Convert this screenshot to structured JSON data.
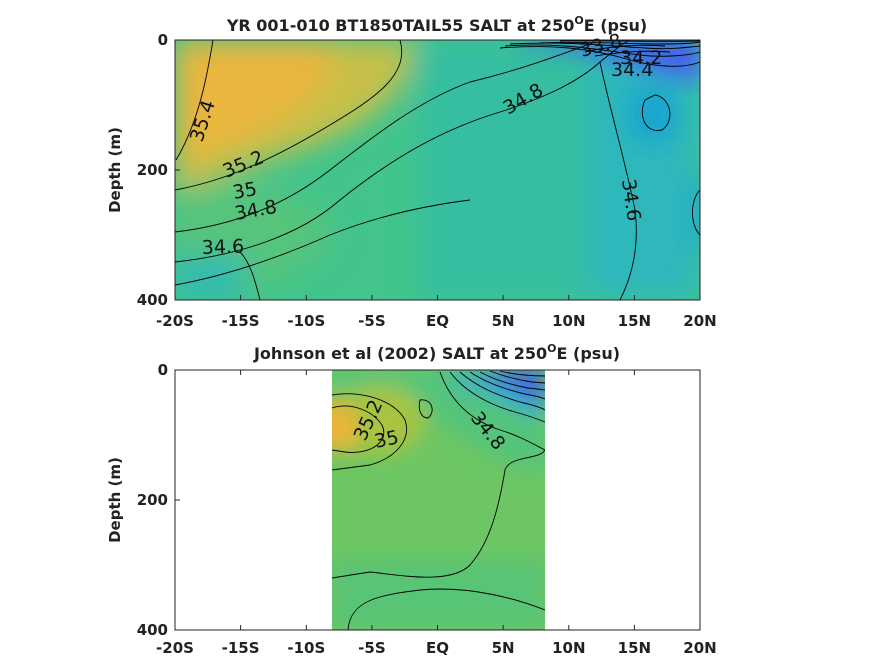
{
  "chart_data": [
    {
      "type": "heatmap",
      "title_main": "YR 001-010 BT1850TAIL55 SALT at 250",
      "title_sup": "O",
      "title_end": "E (psu)",
      "ylabel": "Depth (m)",
      "xlim": [
        -20,
        20
      ],
      "ylim": [
        0,
        400
      ],
      "y_reversed": true,
      "x_ticks": [
        "-20S",
        "-15S",
        "-10S",
        "-5S",
        "EQ",
        "5N",
        "10N",
        "15N",
        "20N"
      ],
      "y_ticks": [
        "0",
        "200",
        "400"
      ],
      "contour_labels": [
        "35.4",
        "35.2",
        "35",
        "34.8",
        "34.6",
        "34.8",
        "34.6",
        "34.4",
        "34.2",
        "33.8"
      ],
      "colors": {
        "high": "#f0b43a",
        "mid": "#3cc48a",
        "low": "#2fb8c4",
        "fresh": "#3d5ee8"
      }
    },
    {
      "type": "heatmap",
      "title_main": "Johnson et al (2002) SALT at 250",
      "title_sup": "O",
      "title_end": "E (psu)",
      "ylabel": "Depth (m)",
      "xlim": [
        -20,
        20
      ],
      "ylim": [
        0,
        400
      ],
      "y_reversed": true,
      "data_extent_x": [
        -8,
        8.2
      ],
      "x_ticks": [
        "-20S",
        "-15S",
        "-10S",
        "-5S",
        "EQ",
        "5N",
        "10N",
        "15N",
        "20N"
      ],
      "y_ticks": [
        "0",
        "200",
        "400"
      ],
      "contour_labels": [
        "35.2",
        "35",
        "34.8"
      ],
      "colors": {
        "high": "#f0b43a",
        "mid": "#7cc85a",
        "low": "#4cc488",
        "fresh": "#3d5ee8"
      }
    }
  ]
}
